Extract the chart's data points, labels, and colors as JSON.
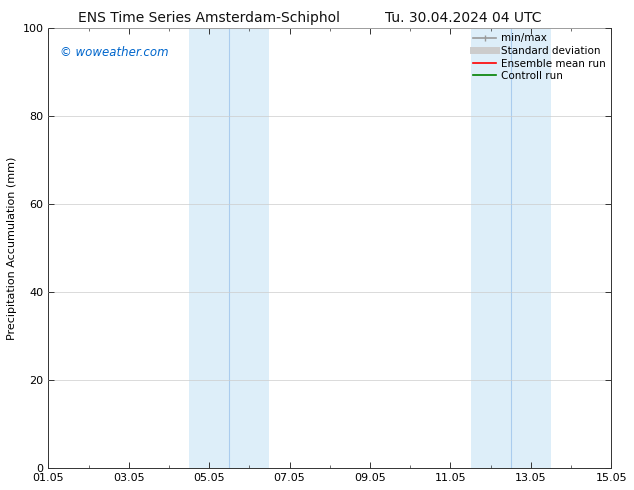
{
  "title_left": "ENS Time Series Amsterdam-Schiphol",
  "title_right": "Tu. 30.04.2024 04 UTC",
  "ylabel": "Precipitation Accumulation (mm)",
  "ylim": [
    0,
    100
  ],
  "yticks": [
    0,
    20,
    40,
    60,
    80,
    100
  ],
  "xtick_labels": [
    "01.05",
    "03.05",
    "05.05",
    "07.05",
    "09.05",
    "11.05",
    "13.05",
    "15.05"
  ],
  "xtick_positions": [
    0,
    2,
    4,
    6,
    8,
    10,
    12,
    14
  ],
  "shaded_regions": [
    {
      "xstart": 3.5,
      "xend": 4.5,
      "color": "#ddeef9"
    },
    {
      "xstart": 4.5,
      "xend": 5.5,
      "color": "#ddeef9"
    },
    {
      "xstart": 10.5,
      "xend": 11.5,
      "color": "#ddeef9"
    },
    {
      "xstart": 11.5,
      "xend": 12.5,
      "color": "#ddeef9"
    }
  ],
  "shaded_dividers": [
    4.5,
    11.5
  ],
  "watermark_text": "© woweather.com",
  "watermark_color": "#0066cc",
  "legend_items": [
    {
      "label": "min/max",
      "color": "#999999",
      "lw": 1.2
    },
    {
      "label": "Standard deviation",
      "color": "#cccccc",
      "lw": 5
    },
    {
      "label": "Ensemble mean run",
      "color": "#ff0000",
      "lw": 1.2
    },
    {
      "label": "Controll run",
      "color": "#008000",
      "lw": 1.2
    }
  ],
  "background_color": "#ffffff",
  "title_fontsize": 10,
  "axis_label_fontsize": 8,
  "tick_fontsize": 8,
  "legend_fontsize": 7.5,
  "grid_color": "#cccccc",
  "spine_color": "#333333"
}
